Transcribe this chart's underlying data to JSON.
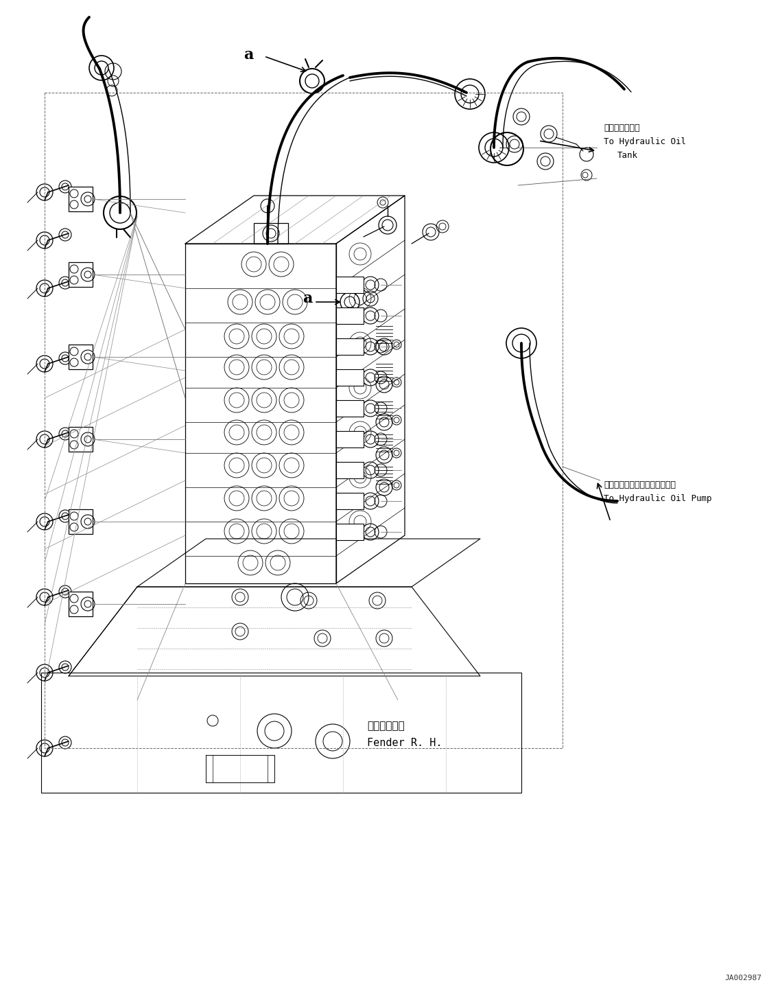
{
  "figure_width": 11.37,
  "figure_height": 14.57,
  "dpi": 100,
  "bg_color": "#ffffff",
  "lc": "#000000",
  "ann_hydraulic_oil_tank_jp": "作動油タンクへ",
  "ann_hydraulic_oil_tank_en1": "To Hydraulic Oil",
  "ann_hydraulic_oil_tank_en2": "Tank",
  "ann_hydraulic_oil_pump_jp": "ハイドロリックオイルポンプへ",
  "ann_hydraulic_oil_pump_en": "To Hydraulic Oil Pump",
  "ann_fender_jp": "フェンダ　右",
  "ann_fender_en": "Fender R. H.",
  "doc_number": "JA002987",
  "label_a": "a"
}
